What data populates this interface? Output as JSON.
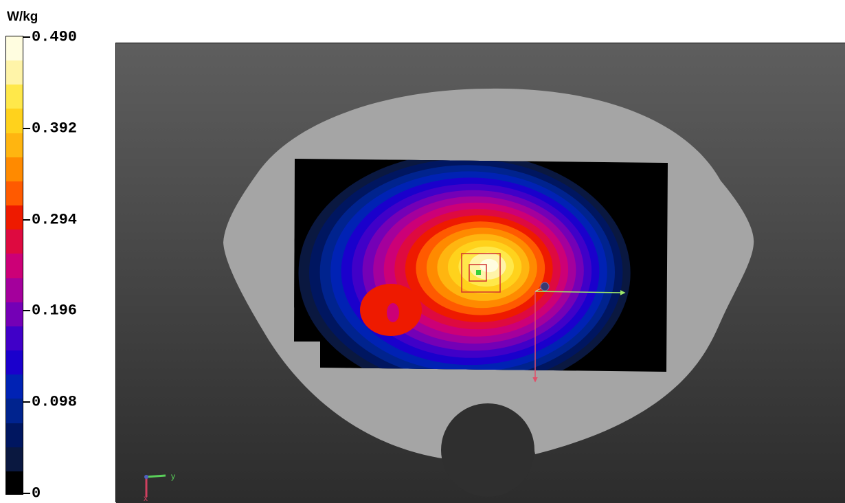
{
  "chart_data": {
    "type": "heatmap",
    "unit": "W/kg",
    "colorbar": {
      "min": 0,
      "max": 0.49,
      "tick_labels": [
        "0.490",
        "0.392",
        "0.294",
        "0.196",
        "0.098",
        "0"
      ],
      "tick_values": [
        0.49,
        0.392,
        0.294,
        0.196,
        0.098,
        0
      ],
      "band_colors": [
        "#fffde0",
        "#fff4a8",
        "#ffe84a",
        "#ffd21c",
        "#ffb510",
        "#ff8a00",
        "#ff5a00",
        "#ee1a00",
        "#de0a40",
        "#cc0077",
        "#a4009c",
        "#7400b6",
        "#4000c8",
        "#1a00cc",
        "#0022b4",
        "#00238e",
        "#001660",
        "#0a1840",
        "#000000"
      ]
    },
    "peak_value": 0.49,
    "axes_triad": {
      "y_label": "y",
      "x_label": "x"
    }
  }
}
